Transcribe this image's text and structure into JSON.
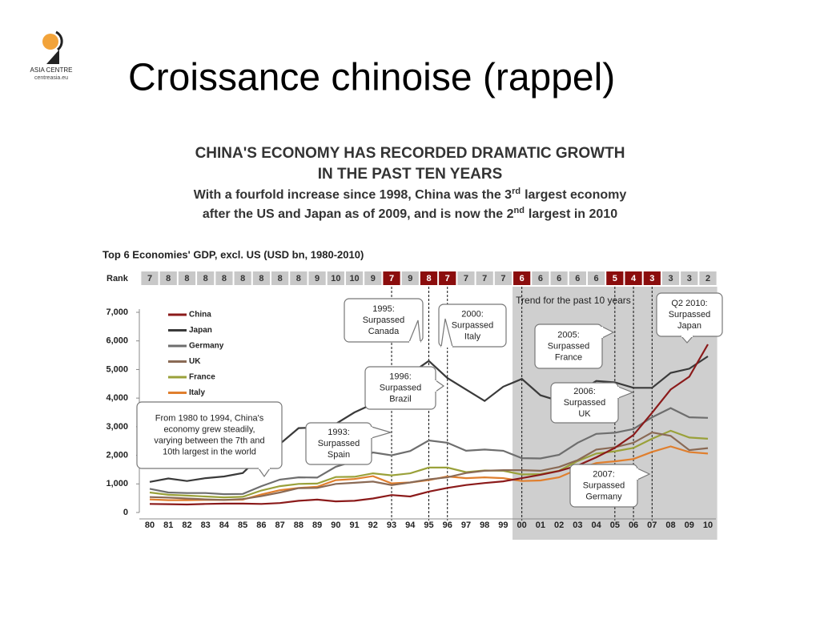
{
  "slide_title": "Croissance chinoise (rappel)",
  "logo": {
    "name": "ASIA CENTRE",
    "site": "centreasia.eu"
  },
  "chart_data": {
    "type": "line",
    "heading": [
      "CHINA'S ECONOMY HAS RECORDED DRAMATIC GROWTH",
      "IN THE PAST TEN YEARS"
    ],
    "subtitle": [
      [
        "With a fourfold increase since 1998, China was the 3",
        "rd",
        "largest economy"
      ],
      [
        "after the US and Japan as of 2009, and is now the 2",
        "nd",
        "largest in 2010"
      ]
    ],
    "title": "Top 6 Economies' GDP, excl. US (USD bn, 1980-2010)",
    "rank_label": "Rank",
    "ranks": [
      7,
      8,
      8,
      8,
      8,
      8,
      8,
      8,
      8,
      9,
      10,
      10,
      9,
      7,
      9,
      8,
      7,
      7,
      7,
      7,
      6,
      6,
      6,
      6,
      6,
      5,
      4,
      3,
      3,
      3,
      2
    ],
    "rank_highlight": [
      "93",
      "95",
      "96",
      "00",
      "05",
      "06",
      "07"
    ],
    "categories": [
      "80",
      "81",
      "82",
      "83",
      "84",
      "85",
      "86",
      "87",
      "88",
      "89",
      "90",
      "91",
      "92",
      "93",
      "94",
      "95",
      "96",
      "97",
      "98",
      "99",
      "00",
      "01",
      "02",
      "03",
      "04",
      "05",
      "06",
      "07",
      "08",
      "09",
      "10"
    ],
    "series": [
      {
        "name": "China",
        "color": "#8b1a1a",
        "values": [
          300,
          290,
          280,
          300,
          310,
          310,
          300,
          330,
          410,
          450,
          390,
          410,
          490,
          610,
          560,
          730,
          860,
          960,
          1030,
          1090,
          1200,
          1320,
          1450,
          1640,
          1930,
          2260,
          2710,
          3490,
          4300,
          4750,
          5880
        ]
      },
      {
        "name": "Japan",
        "color": "#3a3a3a",
        "values": [
          1070,
          1190,
          1100,
          1200,
          1260,
          1380,
          2000,
          2400,
          2950,
          2970,
          3100,
          3500,
          3800,
          4400,
          4850,
          5300,
          4700,
          4300,
          3900,
          4400,
          4670,
          4100,
          3900,
          4200,
          4600,
          4550,
          4360,
          4360,
          4880,
          5030,
          5460
        ]
      },
      {
        "name": "Germany",
        "color": "#6e6e6e",
        "values": [
          830,
          700,
          680,
          680,
          640,
          650,
          920,
          1150,
          1230,
          1220,
          1600,
          1800,
          2100,
          2000,
          2150,
          2520,
          2440,
          2160,
          2200,
          2160,
          1900,
          1890,
          2020,
          2440,
          2750,
          2790,
          2920,
          3330,
          3650,
          3330,
          3310
        ]
      },
      {
        "name": "UK",
        "color": "#8a6a55",
        "values": [
          540,
          520,
          490,
          460,
          440,
          470,
          570,
          700,
          850,
          860,
          1000,
          1040,
          1080,
          960,
          1050,
          1160,
          1230,
          1380,
          1460,
          1480,
          1480,
          1460,
          1590,
          1830,
          2200,
          2280,
          2440,
          2800,
          2680,
          2180,
          2250
        ]
      },
      {
        "name": "France",
        "color": "#9aa13a",
        "values": [
          700,
          620,
          590,
          560,
          530,
          550,
          770,
          920,
          1000,
          1010,
          1240,
          1250,
          1370,
          1300,
          1370,
          1570,
          1570,
          1410,
          1470,
          1460,
          1330,
          1340,
          1460,
          1800,
          2060,
          2140,
          2260,
          2580,
          2860,
          2620,
          2580
        ]
      },
      {
        "name": "Italy",
        "color": "#e07f2e",
        "values": [
          460,
          430,
          430,
          440,
          440,
          450,
          630,
          780,
          860,
          900,
          1130,
          1170,
          1270,
          1020,
          1050,
          1130,
          1260,
          1200,
          1230,
          1200,
          1100,
          1120,
          1230,
          1510,
          1730,
          1790,
          1870,
          2120,
          2310,
          2110,
          2060
        ]
      }
    ],
    "ylim": [
      0,
      7000
    ],
    "yticks": [
      0,
      {
        "value": 1000,
        "label": "1,000"
      },
      {
        "value": 2000,
        "label": "2,000"
      },
      {
        "value": 3000,
        "label": "3,000"
      },
      {
        "value": 4000,
        "label": "4,000"
      },
      {
        "value": 5000,
        "label": "5,000"
      },
      {
        "value": 6000,
        "label": "6,000"
      },
      {
        "value": 7000,
        "label": "7,000"
      }
    ],
    "trend_label": "Trend for the past 10 years",
    "annotations": [
      {
        "lines": [
          "1995:",
          "Surpassed",
          "Canada"
        ]
      },
      {
        "lines": [
          "2000:",
          "Surpassed",
          "Italy"
        ]
      },
      {
        "lines": [
          "Q2 2010:",
          "Surpassed",
          "Japan"
        ]
      },
      {
        "lines": [
          "2005:",
          "Surpassed",
          "France"
        ]
      },
      {
        "lines": [
          "1996:",
          "Surpassed",
          "Brazil"
        ]
      },
      {
        "lines": [
          "2006:",
          "Surpassed",
          "UK"
        ]
      },
      {
        "lines": [
          "From 1980 to 1994, China's",
          "economy grew steadily,",
          "varying between the 7th and",
          "10th largest in the world"
        ]
      },
      {
        "lines": [
          "1993:",
          "Surpassed",
          "Spain"
        ]
      },
      {
        "lines": [
          "2007:",
          "Surpassed",
          "Germany"
        ]
      }
    ]
  }
}
